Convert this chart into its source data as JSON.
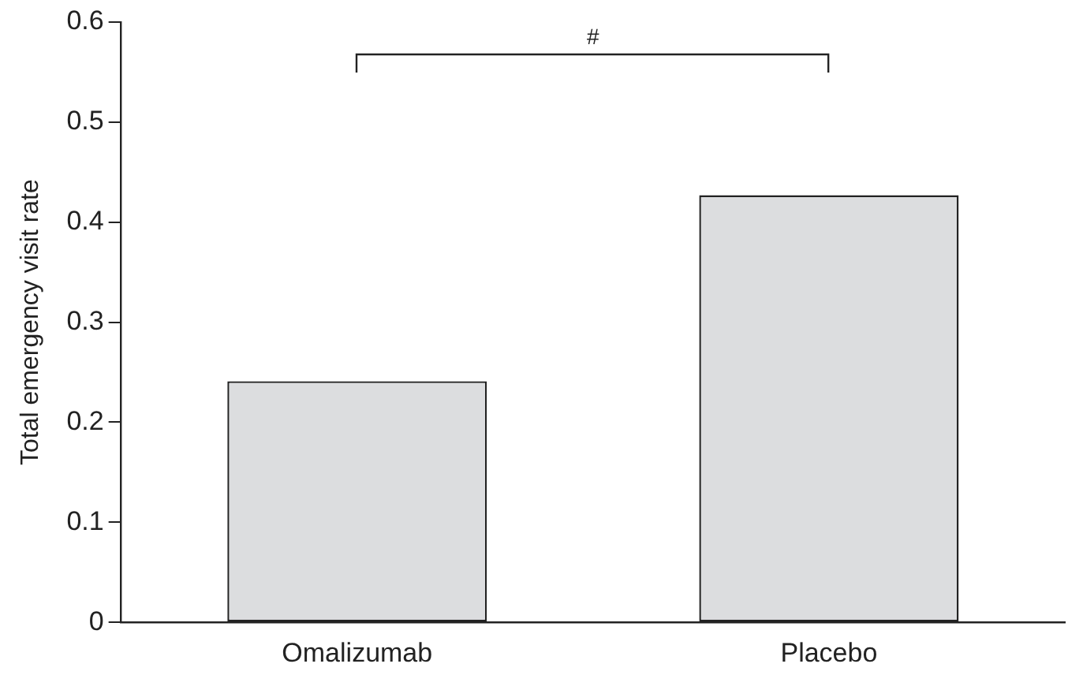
{
  "chart_data": {
    "type": "bar",
    "ylabel": "Total emergency visit rate",
    "categories": [
      "Omalizumab",
      "Placebo"
    ],
    "values": [
      0.241,
      0.427
    ],
    "color": "#dcdddf",
    "ylim": [
      0,
      0.6
    ],
    "yticks": [
      0,
      0.1,
      0.2,
      0.3,
      0.4,
      0.5,
      0.6
    ],
    "grid": false,
    "legend": false,
    "annotations": [
      "#"
    ]
  }
}
